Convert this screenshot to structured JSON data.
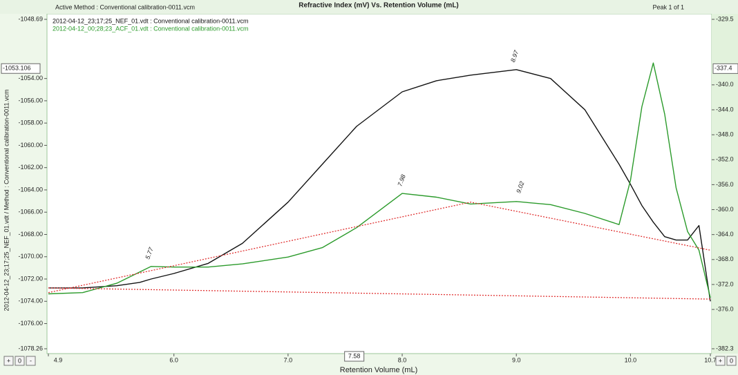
{
  "chart_data": {
    "type": "line",
    "title": "Refractive Index (mV) Vs. Retention Volume (mL)",
    "method": "Active Method : Conventional calibration-0011.vcm",
    "peak_info": "Peak 1 of 1",
    "x_label": "Retention Volume (mL)",
    "y_label": "2012-04-12_23;17;25_NEF_01.vdt / Method : Conventional calibration-0011.vcm",
    "zoom_buttons": [
      "+",
      "0",
      "-"
    ],
    "x": [
      4.9,
      5.2,
      5.5,
      5.7,
      5.8,
      6.0,
      6.3,
      6.6,
      7.0,
      7.3,
      7.6,
      8.0,
      8.3,
      8.6,
      9.0,
      9.3,
      9.6,
      9.9,
      10.0,
      10.1,
      10.2,
      10.3,
      10.4,
      10.5,
      10.6,
      10.7
    ],
    "series": [
      {
        "name": "2012-04-12_23;17;25_NEF_01.vdt : Conventional calibration-0011.vcm",
        "color": "#111111",
        "values": [
          -1072.8,
          -1072.8,
          -1072.6,
          -1072.3,
          -1072.0,
          -1071.5,
          -1070.6,
          -1068.8,
          -1065.1,
          -1061.7,
          -1058.3,
          -1055.2,
          -1054.2,
          -1053.7,
          -1053.2,
          -1054.0,
          -1056.8,
          -1061.7,
          -1063.5,
          -1065.4,
          -1066.9,
          -1068.2,
          -1068.5,
          -1068.5,
          -1067.2,
          -1074.0
        ]
      },
      {
        "name": "2012-04-12_00;28;23_ACF_01.vdt : Conventional calibration-0011.vcm",
        "color": "#2a9a2a",
        "axis": "y2",
        "values": [
          -373.5,
          -373.3,
          -371.8,
          -370.0,
          -369.1,
          -369.2,
          -369.2,
          -368.7,
          -367.6,
          -366.1,
          -362.9,
          -357.4,
          -358.0,
          -359.1,
          -358.7,
          -359.2,
          -360.6,
          -362.4,
          -355.3,
          -343.5,
          -336.5,
          -344.7,
          -356.5,
          -363.5,
          -366.5,
          -374.1
        ]
      },
      {
        "color": "#e03030",
        "style": "dotted",
        "axis": "y2",
        "x": [
          4.9,
          8.6,
          10.7
        ],
        "values": [
          -373.3,
          -358.8,
          -366.5
        ]
      },
      {
        "color": "#e03030",
        "style": "dotted",
        "x": [
          4.9,
          10.7
        ],
        "values": [
          -1072.8,
          -1073.8
        ]
      }
    ],
    "annotations": [
      {
        "text": "5.77",
        "x": 5.77,
        "y": -369.5,
        "axis": "y2"
      },
      {
        "text": "7.98",
        "x": 7.98,
        "y": -357.8,
        "axis": "y2"
      },
      {
        "text": "9.02",
        "x": 9.02,
        "y": -358.9,
        "axis": "y2"
      },
      {
        "text": "8.97",
        "x": 8.97,
        "y": -1053.4
      }
    ],
    "cursor": {
      "x": 7.58,
      "y": -1053.106,
      "y2": -337.4
    },
    "xlim": [
      4.9,
      10.7
    ],
    "xticks": [
      4.9,
      {
        "value": 6,
        "label": "6.0"
      },
      {
        "value": 7,
        "label": "7.0"
      },
      {
        "value": 8,
        "label": "8.0"
      },
      {
        "value": 9,
        "label": "9.0"
      },
      {
        "value": 10,
        "label": "10.0"
      },
      10.7
    ],
    "ylim": [
      -1078.26,
      -1048.69
    ],
    "yticks": [
      -1048.69,
      {
        "value": -1054,
        "label": "-1054.00"
      },
      {
        "value": -1056,
        "label": "-1056.00"
      },
      {
        "value": -1058,
        "label": "-1058.00"
      },
      {
        "value": -1060,
        "label": "-1060.00"
      },
      {
        "value": -1062,
        "label": "-1062.00"
      },
      {
        "value": -1064,
        "label": "-1064.00"
      },
      {
        "value": -1066,
        "label": "-1066.00"
      },
      {
        "value": -1068,
        "label": "-1068.00"
      },
      {
        "value": -1070,
        "label": "-1070.00"
      },
      {
        "value": -1072,
        "label": "-1072.00"
      },
      {
        "value": -1074,
        "label": "-1074.00"
      },
      {
        "value": -1076,
        "label": "-1076.00"
      },
      -1078.26
    ],
    "y2lim": [
      -382.3,
      -329.5
    ],
    "y2ticks": [
      -329.5,
      {
        "value": -340,
        "label": "-340.0"
      },
      {
        "value": -344,
        "label": "-344.0"
      },
      {
        "value": -348,
        "label": "-348.0"
      },
      {
        "value": -352,
        "label": "-352.0"
      },
      {
        "value": -356,
        "label": "-356.0"
      },
      {
        "value": -360,
        "label": "-360.0"
      },
      {
        "value": -364,
        "label": "-364.0"
      },
      {
        "value": -368,
        "label": "-368.0"
      },
      {
        "value": -372,
        "label": "-372.0"
      },
      {
        "value": -376,
        "label": "-376.0"
      },
      -382.3
    ],
    "grid": false
  }
}
